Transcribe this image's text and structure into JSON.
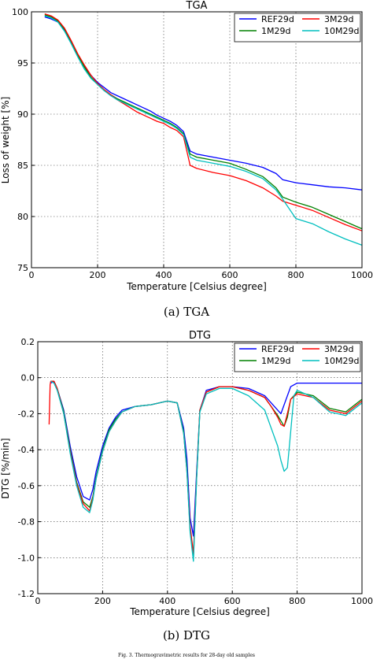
{
  "figure": {
    "footer_caption": "Fig. 3. Thermogravimetric results for 28-day old samples"
  },
  "chart_data": [
    {
      "id": "tga",
      "type": "line",
      "title": "TGA",
      "caption": "(a)  TGA",
      "xlabel": "Temperature [Celsius degree]",
      "ylabel": "Loss of weight [%]",
      "xlim": [
        0,
        1000
      ],
      "ylim": [
        75,
        100
      ],
      "xticks": [
        0,
        200,
        400,
        600,
        800,
        1000
      ],
      "yticks": [
        75,
        80,
        85,
        90,
        95,
        100
      ],
      "grid": true,
      "legend_position": "top-right",
      "series": [
        {
          "name": "REF29d",
          "color": "#0000ff",
          "x": [
            40,
            60,
            80,
            100,
            120,
            140,
            160,
            180,
            200,
            220,
            240,
            260,
            280,
            300,
            320,
            340,
            360,
            380,
            400,
            420,
            440,
            460,
            480,
            500,
            550,
            600,
            650,
            700,
            740,
            760,
            800,
            850,
            900,
            950,
            1000
          ],
          "y": [
            99.5,
            99.3,
            99.0,
            98.2,
            97.0,
            95.8,
            94.7,
            93.8,
            93.1,
            92.6,
            92.1,
            91.8,
            91.5,
            91.2,
            90.9,
            90.6,
            90.3,
            89.9,
            89.6,
            89.3,
            88.9,
            88.3,
            86.4,
            86.1,
            85.8,
            85.5,
            85.2,
            84.8,
            84.2,
            83.6,
            83.3,
            83.1,
            82.9,
            82.8,
            82.6
          ]
        },
        {
          "name": "1M29d",
          "color": "#008000",
          "x": [
            40,
            60,
            80,
            100,
            120,
            140,
            160,
            180,
            200,
            220,
            240,
            260,
            280,
            300,
            320,
            340,
            360,
            380,
            400,
            420,
            440,
            460,
            480,
            500,
            550,
            600,
            650,
            700,
            740,
            760,
            800,
            850,
            900,
            950,
            1000
          ],
          "y": [
            99.7,
            99.5,
            99.1,
            98.3,
            97.1,
            95.8,
            94.6,
            93.6,
            92.9,
            92.3,
            91.9,
            91.5,
            91.2,
            90.9,
            90.6,
            90.3,
            90.0,
            89.7,
            89.4,
            89.1,
            88.7,
            88.1,
            86.1,
            85.8,
            85.5,
            85.2,
            84.6,
            83.9,
            82.8,
            81.9,
            81.4,
            80.9,
            80.2,
            79.5,
            78.8
          ]
        },
        {
          "name": "3M29d",
          "color": "#ff0000",
          "x": [
            40,
            60,
            80,
            100,
            120,
            140,
            160,
            180,
            200,
            220,
            240,
            260,
            280,
            300,
            320,
            340,
            360,
            380,
            400,
            420,
            440,
            460,
            480,
            500,
            550,
            600,
            650,
            700,
            740,
            760,
            800,
            850,
            900,
            950,
            1000
          ],
          "y": [
            99.8,
            99.6,
            99.2,
            98.4,
            97.2,
            95.9,
            94.8,
            93.8,
            93.0,
            92.4,
            91.9,
            91.4,
            91.0,
            90.6,
            90.2,
            89.9,
            89.6,
            89.3,
            89.1,
            88.7,
            88.4,
            87.8,
            85.0,
            84.7,
            84.3,
            84.0,
            83.5,
            82.8,
            82.0,
            81.5,
            81.1,
            80.6,
            79.9,
            79.2,
            78.6
          ]
        },
        {
          "name": "10M29d",
          "color": "#00bfbf",
          "x": [
            40,
            60,
            80,
            100,
            120,
            140,
            160,
            180,
            200,
            220,
            240,
            260,
            280,
            300,
            320,
            340,
            360,
            380,
            400,
            420,
            440,
            460,
            480,
            500,
            550,
            600,
            650,
            700,
            740,
            760,
            800,
            850,
            900,
            950,
            1000
          ],
          "y": [
            99.6,
            99.4,
            99.0,
            98.1,
            96.9,
            95.6,
            94.4,
            93.5,
            92.9,
            92.3,
            91.8,
            91.4,
            91.1,
            90.8,
            90.5,
            90.2,
            89.9,
            89.6,
            89.3,
            89.0,
            88.6,
            88.0,
            85.8,
            85.5,
            85.2,
            84.9,
            84.4,
            83.7,
            82.6,
            81.7,
            79.8,
            79.3,
            78.5,
            77.8,
            77.2
          ]
        }
      ]
    },
    {
      "id": "dtg",
      "type": "line",
      "title": "DTG",
      "caption": "(b)  DTG",
      "xlabel": "Temperature [Celsius degree]",
      "ylabel": "DTG [%/min]",
      "xlim": [
        0,
        1000
      ],
      "ylim": [
        -1.2,
        0.2
      ],
      "xticks": [
        0,
        200,
        400,
        600,
        800,
        1000
      ],
      "yticks": [
        -1.2,
        -1.0,
        -0.8,
        -0.6,
        -0.4,
        -0.2,
        0.0,
        0.2
      ],
      "grid": true,
      "legend_position": "top-right",
      "series": [
        {
          "name": "REF29d",
          "color": "#0000ff",
          "x": [
            40,
            50,
            60,
            80,
            100,
            120,
            140,
            160,
            170,
            180,
            200,
            220,
            240,
            260,
            300,
            350,
            400,
            430,
            450,
            460,
            470,
            480,
            490,
            500,
            520,
            560,
            600,
            650,
            700,
            720,
            740,
            750,
            760,
            780,
            800,
            850,
            900,
            950,
            1000
          ],
          "y": [
            -0.03,
            -0.02,
            -0.06,
            -0.18,
            -0.38,
            -0.55,
            -0.66,
            -0.68,
            -0.62,
            -0.52,
            -0.38,
            -0.28,
            -0.22,
            -0.18,
            -0.16,
            -0.15,
            -0.13,
            -0.14,
            -0.28,
            -0.45,
            -0.78,
            -0.88,
            -0.52,
            -0.18,
            -0.07,
            -0.05,
            -0.05,
            -0.06,
            -0.1,
            -0.14,
            -0.18,
            -0.2,
            -0.15,
            -0.05,
            -0.03,
            -0.03,
            -0.03,
            -0.03,
            -0.03
          ]
        },
        {
          "name": "1M29d",
          "color": "#008000",
          "x": [
            40,
            50,
            60,
            80,
            100,
            120,
            140,
            160,
            170,
            180,
            200,
            220,
            240,
            260,
            300,
            350,
            400,
            430,
            450,
            460,
            470,
            480,
            490,
            500,
            520,
            560,
            600,
            650,
            700,
            720,
            740,
            750,
            760,
            770,
            780,
            800,
            850,
            900,
            950,
            1000
          ],
          "y": [
            -0.02,
            -0.02,
            -0.06,
            -0.19,
            -0.4,
            -0.58,
            -0.69,
            -0.72,
            -0.66,
            -0.55,
            -0.4,
            -0.29,
            -0.23,
            -0.19,
            -0.16,
            -0.15,
            -0.13,
            -0.14,
            -0.3,
            -0.5,
            -0.85,
            -1.0,
            -0.55,
            -0.18,
            -0.08,
            -0.05,
            -0.05,
            -0.07,
            -0.11,
            -0.16,
            -0.21,
            -0.24,
            -0.27,
            -0.22,
            -0.12,
            -0.08,
            -0.1,
            -0.17,
            -0.19,
            -0.12
          ]
        },
        {
          "name": "3M29d",
          "color": "#ff0000",
          "x": [
            35,
            38,
            40,
            50,
            60,
            80,
            100,
            120,
            140,
            160,
            170,
            180,
            200,
            220,
            240,
            260,
            300,
            350,
            400,
            430,
            450,
            460,
            470,
            480,
            490,
            500,
            520,
            560,
            600,
            650,
            700,
            720,
            740,
            750,
            760,
            770,
            780,
            800,
            850,
            900,
            950,
            1000
          ],
          "y": [
            -0.26,
            -0.04,
            -0.02,
            -0.02,
            -0.06,
            -0.2,
            -0.41,
            -0.59,
            -0.7,
            -0.74,
            -0.67,
            -0.56,
            -0.41,
            -0.3,
            -0.24,
            -0.19,
            -0.16,
            -0.15,
            -0.13,
            -0.14,
            -0.31,
            -0.52,
            -0.82,
            -0.98,
            -0.55,
            -0.18,
            -0.08,
            -0.05,
            -0.05,
            -0.07,
            -0.11,
            -0.16,
            -0.22,
            -0.26,
            -0.27,
            -0.2,
            -0.12,
            -0.09,
            -0.11,
            -0.18,
            -0.2,
            -0.13
          ]
        },
        {
          "name": "10M29d",
          "color": "#00bfbf",
          "x": [
            40,
            50,
            60,
            80,
            100,
            120,
            140,
            160,
            170,
            180,
            200,
            220,
            240,
            260,
            300,
            350,
            400,
            430,
            450,
            460,
            470,
            480,
            490,
            500,
            520,
            560,
            600,
            650,
            700,
            720,
            740,
            750,
            760,
            770,
            780,
            790,
            800,
            850,
            900,
            950,
            1000
          ],
          "y": [
            -0.02,
            -0.03,
            -0.07,
            -0.2,
            -0.42,
            -0.6,
            -0.72,
            -0.75,
            -0.68,
            -0.56,
            -0.41,
            -0.3,
            -0.24,
            -0.19,
            -0.16,
            -0.15,
            -0.13,
            -0.14,
            -0.31,
            -0.52,
            -0.86,
            -1.02,
            -0.56,
            -0.19,
            -0.09,
            -0.06,
            -0.06,
            -0.1,
            -0.18,
            -0.28,
            -0.38,
            -0.46,
            -0.52,
            -0.5,
            -0.3,
            -0.1,
            -0.07,
            -0.11,
            -0.19,
            -0.21,
            -0.14
          ]
        }
      ]
    }
  ]
}
